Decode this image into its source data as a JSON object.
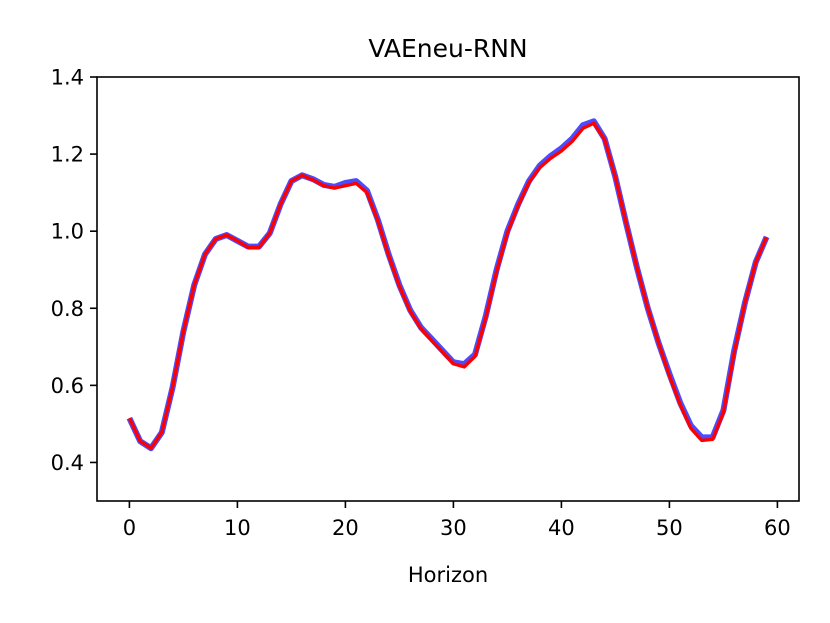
{
  "chart_data": {
    "type": "line",
    "title": "VAEneu-RNN",
    "xlabel": "Horizon",
    "ylabel": "",
    "xlim": [
      -3,
      62
    ],
    "ylim": [
      0.3,
      1.4
    ],
    "xticks": [
      0,
      10,
      20,
      30,
      40,
      50,
      60
    ],
    "xtick_labels": [
      "0",
      "10",
      "20",
      "30",
      "40",
      "50",
      "60"
    ],
    "yticks": [
      0.4,
      0.6,
      0.8,
      1.0,
      1.2,
      1.4
    ],
    "ytick_labels": [
      "0.4",
      "0.6",
      "0.8",
      "1.0",
      "1.2",
      "1.4"
    ],
    "grid": false,
    "legend": false,
    "x": [
      0,
      1,
      2,
      3,
      4,
      5,
      6,
      7,
      8,
      9,
      10,
      11,
      12,
      13,
      14,
      15,
      16,
      17,
      18,
      19,
      20,
      21,
      22,
      23,
      24,
      25,
      26,
      27,
      28,
      29,
      30,
      31,
      32,
      33,
      34,
      35,
      36,
      37,
      38,
      39,
      40,
      41,
      42,
      43,
      44,
      45,
      46,
      47,
      48,
      49,
      50,
      51,
      52,
      53,
      54,
      55,
      56,
      57,
      58,
      59
    ],
    "series": [
      {
        "color": "#0000ff",
        "values": [
          0.515,
          0.455,
          0.437,
          0.478,
          0.595,
          0.74,
          0.86,
          0.94,
          0.98,
          0.99,
          0.975,
          0.96,
          0.96,
          0.995,
          1.07,
          1.13,
          1.145,
          1.135,
          1.12,
          1.115,
          1.125,
          1.13,
          1.105,
          1.03,
          0.94,
          0.86,
          0.795,
          0.75,
          0.72,
          0.69,
          0.66,
          0.655,
          0.68,
          0.78,
          0.9,
          1.0,
          1.07,
          1.13,
          1.17,
          1.195,
          1.215,
          1.24,
          1.275,
          1.285,
          1.24,
          1.14,
          1.02,
          0.905,
          0.8,
          0.71,
          0.63,
          0.555,
          0.495,
          0.465,
          0.465,
          0.535,
          0.69,
          0.815,
          0.92,
          0.985
        ]
      },
      {
        "color": "#ff0000",
        "values": [
          0.515,
          0.455,
          0.437,
          0.478,
          0.595,
          0.74,
          0.86,
          0.94,
          0.98,
          0.99,
          0.975,
          0.958,
          0.958,
          0.995,
          1.07,
          1.13,
          1.145,
          1.133,
          1.118,
          1.112,
          1.118,
          1.124,
          1.1,
          1.027,
          0.937,
          0.857,
          0.792,
          0.747,
          0.716,
          0.686,
          0.656,
          0.648,
          0.675,
          0.776,
          0.896,
          0.996,
          1.067,
          1.127,
          1.165,
          1.189,
          1.208,
          1.233,
          1.267,
          1.28,
          1.238,
          1.14,
          1.02,
          0.905,
          0.8,
          0.71,
          0.625,
          0.55,
          0.488,
          0.457,
          0.46,
          0.53,
          0.685,
          0.815,
          0.92,
          0.985
        ]
      }
    ]
  }
}
